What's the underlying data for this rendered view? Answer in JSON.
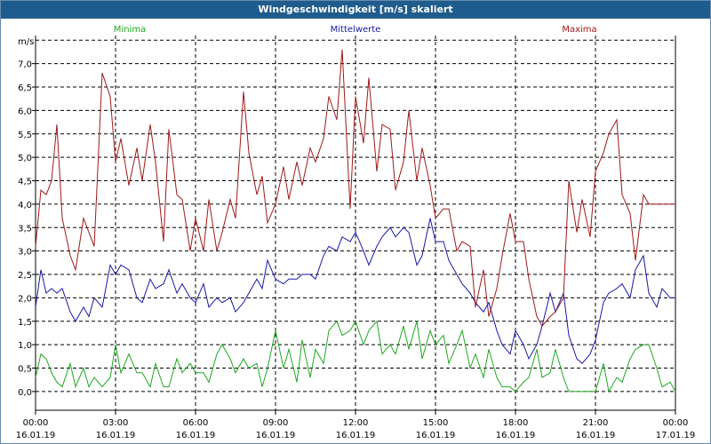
{
  "window": {
    "title": "Windgeschwindigkeit [m/s] skaliert"
  },
  "chart_data": {
    "type": "line",
    "title": "Windgeschwindigkeit [m/s] skaliert",
    "ylabel": "m/s",
    "xlabel": "",
    "ylim": [
      -0.4,
      7.6
    ],
    "xlim": [
      0,
      24
    ],
    "grid": true,
    "legend": "top",
    "yticks": [
      "0,0",
      "0,5",
      "1,0",
      "1,5",
      "2,0",
      "2,5",
      "3,0",
      "3,5",
      "4,0",
      "4,5",
      "5,0",
      "5,5",
      "6,0",
      "6,5",
      "7,0"
    ],
    "xticks": [
      {
        "time": "00:00",
        "date": "16.01.19"
      },
      {
        "time": "03:00",
        "date": "16.01.19"
      },
      {
        "time": "06:00",
        "date": "16.01.19"
      },
      {
        "time": "09:00",
        "date": "16.01.19"
      },
      {
        "time": "12:00",
        "date": "16.01.19"
      },
      {
        "time": "15:00",
        "date": "16.01.19"
      },
      {
        "time": "18:00",
        "date": "16.01.19"
      },
      {
        "time": "21:00",
        "date": "16.01.19"
      },
      {
        "time": "00:00",
        "date": "17.01.19"
      }
    ],
    "series": [
      {
        "name": "Minima",
        "color": "#1fa81f",
        "x": [
          0,
          0.2,
          0.4,
          0.6,
          0.8,
          1,
          1.3,
          1.5,
          1.8,
          2,
          2.2,
          2.5,
          2.8,
          3,
          3.2,
          3.5,
          3.8,
          4,
          4.3,
          4.5,
          4.8,
          5,
          5.3,
          5.5,
          5.8,
          6,
          6.3,
          6.5,
          6.8,
          7,
          7.3,
          7.5,
          7.8,
          8,
          8.3,
          8.5,
          8.7,
          9,
          9.3,
          9.5,
          9.8,
          10,
          10.3,
          10.5,
          10.8,
          11,
          11.3,
          11.5,
          11.8,
          12,
          12.3,
          12.5,
          12.8,
          13,
          13.3,
          13.5,
          13.8,
          14,
          14.3,
          14.5,
          14.8,
          15,
          15.3,
          15.5,
          15.8,
          16,
          16.3,
          16.5,
          16.8,
          17,
          17.3,
          17.5,
          17.8,
          18,
          18.3,
          18.5,
          18.8,
          19,
          19.3,
          19.5,
          19.8,
          20,
          20.3,
          20.5,
          20.8,
          21,
          21.3,
          21.5,
          21.8,
          22,
          22.3,
          22.5,
          22.8,
          23,
          23.3,
          23.5,
          23.8,
          24
        ],
        "y": [
          0.3,
          0.8,
          0.7,
          0.4,
          0.2,
          0.1,
          0.6,
          0.1,
          0.5,
          0.1,
          0.3,
          0.1,
          0.3,
          1.0,
          0.4,
          0.8,
          0.4,
          0.4,
          0.1,
          0.6,
          0.1,
          0.1,
          0.7,
          0.4,
          0.6,
          0.4,
          0.4,
          0.2,
          0.8,
          1.0,
          0.7,
          0.4,
          0.7,
          0.5,
          0.6,
          0.1,
          0.5,
          1.3,
          0.5,
          0.9,
          0.2,
          1.1,
          0.3,
          0.9,
          0.6,
          1.3,
          1.5,
          1.2,
          1.3,
          1.5,
          1.0,
          1.3,
          1.5,
          0.8,
          1.0,
          0.8,
          1.4,
          0.9,
          1.5,
          0.7,
          1.3,
          1.0,
          1.2,
          0.6,
          1.0,
          1.3,
          0.5,
          0.8,
          0.3,
          0.9,
          0.3,
          0.1,
          0.1,
          0.0,
          0.2,
          0.3,
          0.9,
          0.3,
          0.4,
          0.9,
          0.3,
          0.0,
          0.0,
          0.0,
          0.0,
          0.0,
          0.6,
          0.0,
          0.3,
          0.2,
          0.7,
          0.9,
          1.0,
          1.0,
          0.5,
          0.1,
          0.2,
          0.0
        ]
      },
      {
        "name": "Mittelwerte",
        "color": "#1818a8",
        "x": [
          0,
          0.2,
          0.4,
          0.6,
          0.8,
          1,
          1.3,
          1.5,
          1.8,
          2,
          2.2,
          2.5,
          2.8,
          3,
          3.2,
          3.5,
          3.8,
          4,
          4.3,
          4.5,
          4.8,
          5,
          5.3,
          5.5,
          5.8,
          6,
          6.3,
          6.5,
          6.8,
          7,
          7.3,
          7.5,
          7.8,
          8,
          8.3,
          8.5,
          8.7,
          9,
          9.3,
          9.5,
          9.8,
          10,
          10.3,
          10.5,
          10.8,
          11,
          11.3,
          11.5,
          11.8,
          12,
          12.3,
          12.5,
          12.8,
          13,
          13.3,
          13.5,
          13.8,
          14,
          14.3,
          14.5,
          14.8,
          15,
          15.3,
          15.5,
          15.8,
          16,
          16.3,
          16.5,
          16.8,
          17,
          17.3,
          17.5,
          17.8,
          18,
          18.3,
          18.5,
          18.8,
          19,
          19.3,
          19.5,
          19.8,
          20,
          20.3,
          20.5,
          20.8,
          21,
          21.3,
          21.5,
          21.8,
          22,
          22.3,
          22.5,
          22.8,
          23,
          23.3,
          23.5,
          23.8,
          24
        ],
        "y": [
          1.8,
          2.6,
          2.1,
          2.2,
          2.1,
          2.2,
          1.7,
          1.5,
          1.8,
          1.6,
          2.0,
          1.8,
          2.7,
          2.5,
          2.7,
          2.6,
          2.0,
          1.9,
          2.4,
          2.2,
          2.3,
          2.6,
          2.1,
          2.3,
          2.0,
          1.9,
          2.3,
          1.8,
          2.0,
          1.9,
          2.0,
          1.7,
          1.9,
          2.1,
          2.4,
          2.2,
          2.8,
          2.4,
          2.3,
          2.4,
          2.4,
          2.5,
          2.5,
          2.4,
          2.9,
          3.1,
          3.0,
          3.3,
          3.2,
          3.4,
          3.0,
          2.7,
          3.1,
          3.3,
          3.5,
          3.3,
          3.5,
          3.4,
          2.7,
          2.9,
          3.7,
          3.2,
          3.2,
          2.8,
          2.5,
          2.3,
          2.1,
          1.9,
          1.7,
          1.9,
          1.3,
          1.0,
          0.8,
          1.3,
          1.0,
          0.7,
          1.0,
          1.4,
          2.1,
          1.7,
          2.1,
          1.2,
          0.7,
          0.6,
          0.8,
          1.1,
          1.9,
          2.1,
          2.2,
          2.3,
          2.0,
          2.6,
          2.9,
          2.1,
          1.8,
          2.2,
          2.0,
          2.0
        ]
      },
      {
        "name": "Maxima",
        "color": "#a01818",
        "x": [
          0,
          0.2,
          0.4,
          0.6,
          0.8,
          1,
          1.3,
          1.5,
          1.8,
          2,
          2.2,
          2.5,
          2.8,
          3,
          3.2,
          3.5,
          3.8,
          4,
          4.3,
          4.5,
          4.8,
          5,
          5.3,
          5.5,
          5.8,
          6,
          6.3,
          6.5,
          6.8,
          7,
          7.3,
          7.5,
          7.8,
          8,
          8.3,
          8.5,
          8.7,
          9,
          9.3,
          9.5,
          9.8,
          10,
          10.3,
          10.5,
          10.8,
          11,
          11.3,
          11.5,
          11.8,
          12,
          12.3,
          12.5,
          12.8,
          13,
          13.3,
          13.5,
          13.8,
          14,
          14.3,
          14.5,
          14.8,
          15,
          15.3,
          15.5,
          15.8,
          16,
          16.3,
          16.5,
          16.8,
          17,
          17.3,
          17.5,
          17.8,
          18,
          18.3,
          18.5,
          18.8,
          19,
          19.3,
          19.5,
          19.8,
          20,
          20.3,
          20.5,
          20.8,
          21,
          21.3,
          21.5,
          21.8,
          22,
          22.3,
          22.5,
          22.8,
          23,
          23.3,
          23.5,
          23.8,
          24
        ],
        "y": [
          3.1,
          4.3,
          4.2,
          4.5,
          5.7,
          3.7,
          2.9,
          2.6,
          3.7,
          3.4,
          3.1,
          6.8,
          6.3,
          4.9,
          5.4,
          4.4,
          5.2,
          4.5,
          5.7,
          4.9,
          3.2,
          5.6,
          4.2,
          4.1,
          3.0,
          3.7,
          3.0,
          4.1,
          3.0,
          3.4,
          4.1,
          3.7,
          6.4,
          5.1,
          4.2,
          4.6,
          3.6,
          4.0,
          4.8,
          4.1,
          4.9,
          4.4,
          5.2,
          4.9,
          5.4,
          6.3,
          5.8,
          7.3,
          3.9,
          6.3,
          5.3,
          6.7,
          4.7,
          5.7,
          5.6,
          4.3,
          4.9,
          6.0,
          4.5,
          5.2,
          4.4,
          3.7,
          3.9,
          3.9,
          3.0,
          3.2,
          3.1,
          1.8,
          2.6,
          1.6,
          2.2,
          2.9,
          3.8,
          3.2,
          3.2,
          2.4,
          1.6,
          1.4,
          1.6,
          1.7,
          2.0,
          4.5,
          3.4,
          4.1,
          3.3,
          4.7,
          5.1,
          5.5,
          5.8,
          4.2,
          3.8,
          2.8,
          4.2,
          4.0,
          4.0,
          4.0,
          4.0,
          4.0
        ]
      }
    ]
  }
}
